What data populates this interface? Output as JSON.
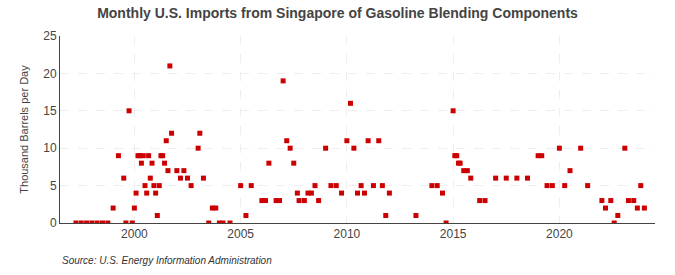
{
  "chart_data": {
    "type": "scatter",
    "title": "Monthly U.S. Imports from Singapore of Gasoline Blending Components",
    "y_label": "Thousand Barrels per Day",
    "annotations": [
      "Source: U.S. Energy Information Administration"
    ],
    "color": "#cc0000",
    "marker": "square",
    "grid": true,
    "ylim": [
      0,
      25
    ],
    "yticks": [
      0,
      5,
      10,
      15,
      20,
      25
    ],
    "xlim": [
      1996.5,
      2024.5
    ],
    "xticks": [
      2000,
      2005,
      2010,
      2015,
      2020
    ],
    "x": [
      1997.25,
      1997.5,
      1997.75,
      1998.0,
      1998.25,
      1998.5,
      1998.75,
      1999.0,
      1999.25,
      1999.5,
      1999.6,
      1999.75,
      1999.9,
      2000.0,
      2000.08,
      2000.17,
      2000.25,
      2000.33,
      2000.42,
      2000.5,
      2000.58,
      2000.67,
      2000.75,
      2000.83,
      2000.92,
      2001.0,
      2001.08,
      2001.17,
      2001.25,
      2001.33,
      2001.42,
      2001.5,
      2001.58,
      2001.67,
      2001.75,
      2002.0,
      2002.17,
      2002.33,
      2002.5,
      2002.67,
      2003.0,
      2003.08,
      2003.25,
      2003.5,
      2003.67,
      2003.83,
      2004.0,
      2004.17,
      2004.5,
      2005.0,
      2005.25,
      2005.5,
      2006.0,
      2006.17,
      2006.33,
      2006.67,
      2006.83,
      2007.0,
      2007.17,
      2007.33,
      2007.5,
      2007.67,
      2007.75,
      2008.0,
      2008.17,
      2008.33,
      2008.5,
      2008.67,
      2009.0,
      2009.25,
      2009.5,
      2009.75,
      2010.0,
      2010.17,
      2010.33,
      2010.5,
      2010.67,
      2010.83,
      2011.0,
      2011.25,
      2011.5,
      2011.67,
      2011.83,
      2012.0,
      2013.25,
      2014.0,
      2014.25,
      2014.5,
      2014.67,
      2015.0,
      2015.08,
      2015.17,
      2015.25,
      2015.33,
      2015.5,
      2015.67,
      2015.83,
      2016.25,
      2016.5,
      2017.0,
      2017.5,
      2018.0,
      2018.5,
      2019.0,
      2019.17,
      2019.42,
      2019.67,
      2020.0,
      2020.25,
      2020.5,
      2021.0,
      2021.33,
      2022.0,
      2022.17,
      2022.42,
      2022.58,
      2022.75,
      2023.08,
      2023.25,
      2023.5,
      2023.67,
      2023.83,
      2024.0
    ],
    "values": [
      0,
      0,
      0,
      0,
      0,
      0,
      0,
      2,
      9,
      6,
      0,
      15,
      0,
      2,
      4,
      9,
      9,
      8,
      9,
      5,
      4,
      9,
      6,
      8,
      5,
      4,
      1,
      5,
      9,
      9,
      8,
      11,
      7,
      21,
      12,
      7,
      6,
      7,
      6,
      5,
      10,
      12,
      6,
      0,
      2,
      2,
      0,
      0,
      0,
      5,
      1,
      5,
      3,
      3,
      8,
      3,
      3,
      19,
      11,
      10,
      8,
      4,
      3,
      3,
      4,
      4,
      5,
      3,
      10,
      5,
      5,
      4,
      11,
      16,
      10,
      4,
      5,
      4,
      11,
      5,
      11,
      5,
      1,
      4,
      1,
      5,
      5,
      4,
      0,
      15,
      9,
      9,
      8,
      8,
      7,
      7,
      6,
      3,
      3,
      6,
      6,
      6,
      6,
      9,
      9,
      5,
      5,
      10,
      5,
      7,
      10,
      5,
      3,
      2,
      3,
      0,
      1,
      10,
      3,
      3,
      2,
      5,
      2
    ]
  }
}
